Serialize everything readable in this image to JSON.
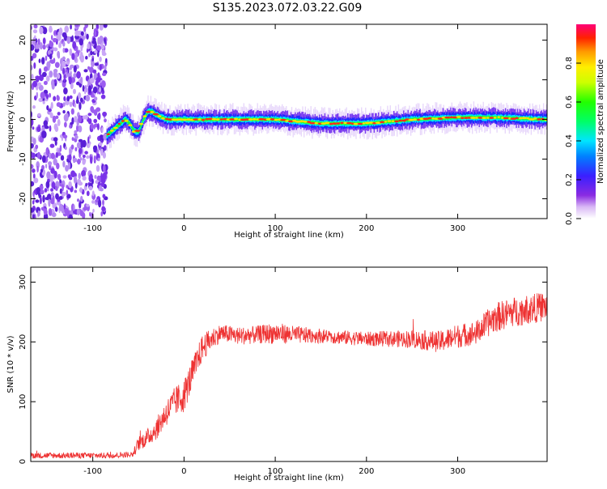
{
  "figure": {
    "title": "S135.2023.072.03.22.G09"
  },
  "chart_data": [
    {
      "type": "heatmap",
      "xlabel": "Height of straight line (km)",
      "ylabel": "Frequency (Hz)",
      "xlim": [
        -168,
        398
      ],
      "ylim": [
        -25,
        24
      ],
      "xticks": [
        -100,
        0,
        100,
        200,
        300
      ],
      "yticks": [
        -20,
        -10,
        0,
        10,
        20
      ],
      "noise_region_x": [
        -168,
        -85
      ],
      "ridge": {
        "x": [
          -85,
          -75,
          -65,
          -60,
          -55,
          -50,
          -45,
          -40,
          -35,
          -30,
          -20,
          0,
          50,
          100,
          150,
          200,
          250,
          300,
          340,
          398
        ],
        "y": [
          -4,
          -2,
          0,
          -1,
          -3,
          -3,
          0,
          2,
          2,
          1,
          0,
          0,
          0,
          0,
          -1,
          -1,
          0,
          0.5,
          0.5,
          0
        ]
      },
      "colorbar": {
        "label": "Normalized spectral amplitude",
        "range": [
          0,
          1
        ],
        "ticks": [
          0.0,
          0.2,
          0.4,
          0.6,
          0.8
        ]
      }
    },
    {
      "type": "line",
      "xlabel": "Height of straight line (km)",
      "ylabel": "SNR (10 * v/v)",
      "xlim": [
        -168,
        398
      ],
      "ylim": [
        0,
        325
      ],
      "xticks": [
        -100,
        0,
        100,
        200,
        300
      ],
      "yticks": [
        0,
        100,
        200,
        300
      ],
      "color": "#ee3333",
      "series": [
        {
          "x": [
            -168,
            -120,
            -80,
            -56,
            -50,
            -40,
            -30,
            -20,
            -10,
            0,
            10,
            20,
            30,
            40,
            60,
            80,
            100,
            120,
            150,
            200,
            250,
            280,
            300,
            320,
            340,
            360,
            380,
            398
          ],
          "y": [
            10,
            10,
            10,
            12,
            30,
            40,
            55,
            80,
            100,
            110,
            150,
            190,
            205,
            215,
            210,
            212,
            215,
            212,
            210,
            205,
            205,
            200,
            210,
            215,
            240,
            250,
            255,
            260
          ],
          "spread": [
            5,
            5,
            5,
            5,
            12,
            15,
            18,
            22,
            25,
            28,
            25,
            22,
            18,
            15,
            15,
            15,
            18,
            15,
            12,
            12,
            15,
            18,
            20,
            20,
            25,
            25,
            25,
            25
          ]
        }
      ]
    }
  ]
}
